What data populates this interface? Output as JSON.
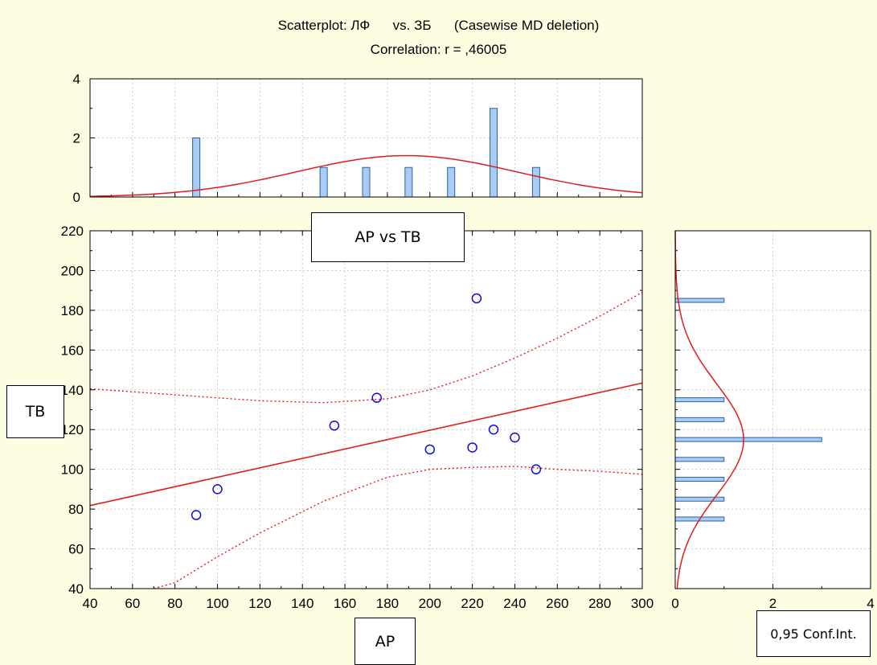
{
  "title": {
    "line1": "Scatterplot: ЛФ      vs. ЗБ      (Casewise MD deletion)",
    "line2": "Correlation: r = ,46005"
  },
  "colors": {
    "background": "#fdfde2",
    "regression": "#e21b1b",
    "points": "#1010d0",
    "bar_fill": "#a9cdf2",
    "bar_stroke": "#2a5fa8",
    "grid": "#cccccc"
  },
  "boxes": {
    "plot_label": "AP vs TB",
    "x_label": "AP",
    "y_label": "TB",
    "conf_label": "0,95 Conf.Int."
  },
  "chart_data": [
    {
      "id": "scatter",
      "type": "scatter",
      "x": [
        90,
        100,
        155,
        175,
        200,
        220,
        222,
        230,
        240,
        250
      ],
      "y": [
        77,
        90,
        122,
        136,
        110,
        111,
        186,
        120,
        116,
        100
      ],
      "xlim": [
        40,
        300
      ],
      "ylim": [
        40,
        220
      ],
      "xticks": [
        40,
        60,
        80,
        100,
        120,
        140,
        160,
        180,
        200,
        220,
        240,
        260,
        280,
        300
      ],
      "yticks": [
        40,
        60,
        80,
        100,
        120,
        140,
        160,
        180,
        200,
        220
      ],
      "regression": {
        "slope": 0.237,
        "intercept": 72.3
      },
      "conf_upper": [
        [
          40,
          140.5
        ],
        [
          80,
          137.5
        ],
        [
          120,
          134.5
        ],
        [
          150,
          133.5
        ],
        [
          180,
          135.5
        ],
        [
          200,
          140
        ],
        [
          220,
          147
        ],
        [
          240,
          156
        ],
        [
          260,
          166
        ],
        [
          280,
          177
        ],
        [
          300,
          189
        ]
      ],
      "conf_lower": [
        [
          70,
          40
        ],
        [
          80,
          43
        ],
        [
          100,
          56
        ],
        [
          120,
          68
        ],
        [
          150,
          84
        ],
        [
          180,
          96
        ],
        [
          200,
          100
        ],
        [
          220,
          101
        ],
        [
          240,
          101.5
        ],
        [
          260,
          100
        ],
        [
          280,
          99
        ],
        [
          300,
          97.5
        ]
      ],
      "grid": true
    },
    {
      "id": "x-histogram",
      "type": "bar",
      "x": [
        90,
        150,
        170,
        190,
        210,
        230,
        250
      ],
      "values": [
        2,
        1,
        1,
        1,
        1,
        3,
        1
      ],
      "xlim": [
        40,
        300
      ],
      "ylim": [
        0,
        4
      ],
      "yticks": [
        0,
        2,
        4
      ],
      "normal_curve": {
        "mean": 189,
        "sd": 52,
        "peak": 1.4
      }
    },
    {
      "id": "y-histogram",
      "type": "bar",
      "orientation": "horizontal",
      "y": [
        75,
        85,
        95,
        105,
        115,
        125,
        135,
        185
      ],
      "values": [
        1,
        1,
        1,
        1,
        3,
        1,
        1,
        1
      ],
      "ylim": [
        40,
        220
      ],
      "xlim": [
        0,
        4
      ],
      "xticks": [
        0,
        2,
        4
      ],
      "normal_curve": {
        "mean": 115,
        "sd": 28,
        "peak": 1.4
      }
    }
  ]
}
